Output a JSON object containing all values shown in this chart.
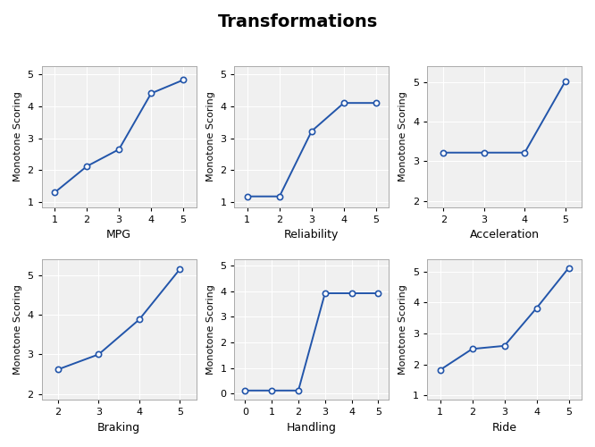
{
  "title": "Transformations",
  "ylabel": "Monotone Scoring",
  "line_color": "#2255AA",
  "bg_color": "#F0F0F0",
  "grid_color": "#FFFFFF",
  "title_fontsize": 14,
  "label_fontsize": 9,
  "ylabel_fontsize": 8,
  "tick_fontsize": 8,
  "plots": [
    {
      "xlabel": "MPG",
      "x": [
        1,
        2,
        3,
        4,
        5
      ],
      "y": [
        1.3,
        2.12,
        2.65,
        4.4,
        4.82
      ],
      "xlim": [
        0.6,
        5.4
      ],
      "ylim": [
        0.85,
        5.25
      ],
      "xticks": [
        1,
        2,
        3,
        4,
        5
      ],
      "yticks": [
        1,
        2,
        3,
        4,
        5
      ]
    },
    {
      "xlabel": "Reliability",
      "x": [
        1,
        2,
        3,
        4,
        5
      ],
      "y": [
        1.18,
        1.18,
        3.22,
        4.1,
        4.1
      ],
      "xlim": [
        0.6,
        5.4
      ],
      "ylim": [
        0.85,
        5.25
      ],
      "xticks": [
        1,
        2,
        3,
        4,
        5
      ],
      "yticks": [
        1,
        2,
        3,
        4,
        5
      ]
    },
    {
      "xlabel": "Acceleration",
      "x": [
        2,
        3,
        4,
        5
      ],
      "y": [
        3.22,
        3.22,
        3.22,
        5.02
      ],
      "xlim": [
        1.6,
        5.4
      ],
      "ylim": [
        1.85,
        5.4
      ],
      "xticks": [
        2,
        3,
        4,
        5
      ],
      "yticks": [
        2,
        3,
        4,
        5
      ]
    },
    {
      "xlabel": "Braking",
      "x": [
        2,
        3,
        4,
        5
      ],
      "y": [
        2.62,
        3.0,
        3.88,
        5.15
      ],
      "xlim": [
        1.6,
        5.4
      ],
      "ylim": [
        1.85,
        5.4
      ],
      "xticks": [
        2,
        3,
        4,
        5
      ],
      "yticks": [
        2,
        3,
        4,
        5
      ]
    },
    {
      "xlabel": "Handling",
      "x": [
        0,
        1,
        2,
        3,
        4,
        5
      ],
      "y": [
        0.12,
        0.12,
        0.12,
        3.92,
        3.92,
        3.92
      ],
      "xlim": [
        -0.4,
        5.4
      ],
      "ylim": [
        -0.25,
        5.25
      ],
      "xticks": [
        0,
        1,
        2,
        3,
        4,
        5
      ],
      "yticks": [
        0,
        1,
        2,
        3,
        4,
        5
      ]
    },
    {
      "xlabel": "Ride",
      "x": [
        1,
        2,
        3,
        4,
        5
      ],
      "y": [
        1.82,
        2.5,
        2.6,
        3.82,
        5.12
      ],
      "xlim": [
        0.6,
        5.4
      ],
      "ylim": [
        0.85,
        5.4
      ],
      "xticks": [
        1,
        2,
        3,
        4,
        5
      ],
      "yticks": [
        1,
        2,
        3,
        4,
        5
      ]
    }
  ]
}
